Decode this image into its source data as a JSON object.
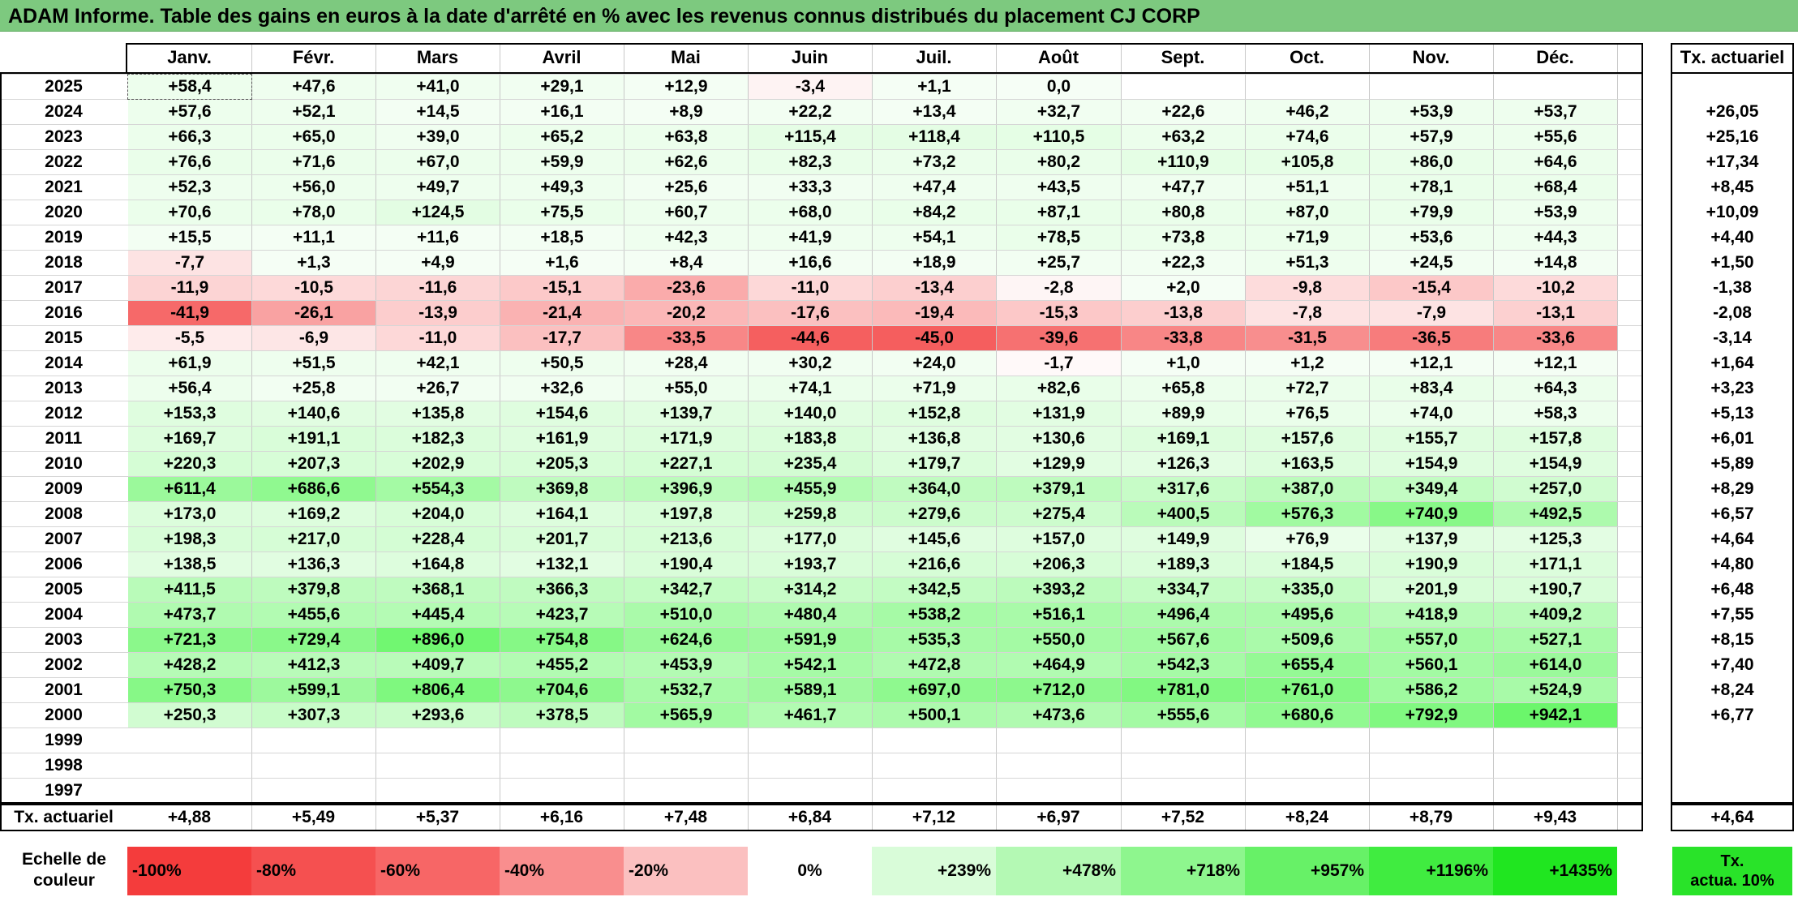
{
  "title": "ADAM Informe. Table des gains en euros à la date d'arrêté en % avec les revenus connus distribués du placement CJ CORP",
  "months": [
    "Janv.",
    "Févr.",
    "Mars",
    "Avril",
    "Mai",
    "Juin",
    "Juil.",
    "Août",
    "Sept.",
    "Oct.",
    "Nov.",
    "Déc."
  ],
  "tx_header": "Tx. actuariel",
  "rows": [
    {
      "year": "2025",
      "values": [
        "+58,4",
        "+47,6",
        "+41,0",
        "+29,1",
        "+12,9",
        "-3,4",
        "+1,1",
        "0,0",
        "",
        "",
        "",
        ""
      ],
      "tx": ""
    },
    {
      "year": "2024",
      "values": [
        "+57,6",
        "+52,1",
        "+14,5",
        "+16,1",
        "+8,9",
        "+22,2",
        "+13,4",
        "+32,7",
        "+22,6",
        "+46,2",
        "+53,9",
        "+53,7"
      ],
      "tx": "+26,05"
    },
    {
      "year": "2023",
      "values": [
        "+66,3",
        "+65,0",
        "+39,0",
        "+65,2",
        "+63,8",
        "+115,4",
        "+118,4",
        "+110,5",
        "+63,2",
        "+74,6",
        "+57,9",
        "+55,6"
      ],
      "tx": "+25,16"
    },
    {
      "year": "2022",
      "values": [
        "+76,6",
        "+71,6",
        "+67,0",
        "+59,9",
        "+62,6",
        "+82,3",
        "+73,2",
        "+80,2",
        "+110,9",
        "+105,8",
        "+86,0",
        "+64,6"
      ],
      "tx": "+17,34"
    },
    {
      "year": "2021",
      "values": [
        "+52,3",
        "+56,0",
        "+49,7",
        "+49,3",
        "+25,6",
        "+33,3",
        "+47,4",
        "+43,5",
        "+47,7",
        "+51,1",
        "+78,1",
        "+68,4"
      ],
      "tx": "+8,45"
    },
    {
      "year": "2020",
      "values": [
        "+70,6",
        "+78,0",
        "+124,5",
        "+75,5",
        "+60,7",
        "+68,0",
        "+84,2",
        "+87,1",
        "+80,8",
        "+87,0",
        "+79,9",
        "+53,9"
      ],
      "tx": "+10,09"
    },
    {
      "year": "2019",
      "values": [
        "+15,5",
        "+11,1",
        "+11,6",
        "+18,5",
        "+42,3",
        "+41,9",
        "+54,1",
        "+78,5",
        "+73,8",
        "+71,9",
        "+53,6",
        "+44,3"
      ],
      "tx": "+4,40"
    },
    {
      "year": "2018",
      "values": [
        "-7,7",
        "+1,3",
        "+4,9",
        "+1,6",
        "+8,4",
        "+16,6",
        "+18,9",
        "+25,7",
        "+22,3",
        "+51,3",
        "+24,5",
        "+14,8"
      ],
      "tx": "+1,50"
    },
    {
      "year": "2017",
      "values": [
        "-11,9",
        "-10,5",
        "-11,6",
        "-15,1",
        "-23,6",
        "-11,0",
        "-13,4",
        "-2,8",
        "+2,0",
        "-9,8",
        "-15,4",
        "-10,2"
      ],
      "tx": "-1,38"
    },
    {
      "year": "2016",
      "values": [
        "-41,9",
        "-26,1",
        "-13,9",
        "-21,4",
        "-20,2",
        "-17,6",
        "-19,4",
        "-15,3",
        "-13,8",
        "-7,8",
        "-7,9",
        "-13,1"
      ],
      "tx": "-2,08"
    },
    {
      "year": "2015",
      "values": [
        "-5,5",
        "-6,9",
        "-11,0",
        "-17,7",
        "-33,5",
        "-44,6",
        "-45,0",
        "-39,6",
        "-33,8",
        "-31,5",
        "-36,5",
        "-33,6"
      ],
      "tx": "-3,14"
    },
    {
      "year": "2014",
      "values": [
        "+61,9",
        "+51,5",
        "+42,1",
        "+50,5",
        "+28,4",
        "+30,2",
        "+24,0",
        "-1,7",
        "+1,0",
        "+1,2",
        "+12,1",
        "+12,1"
      ],
      "tx": "+1,64"
    },
    {
      "year": "2013",
      "values": [
        "+56,4",
        "+25,8",
        "+26,7",
        "+32,6",
        "+55,0",
        "+74,1",
        "+71,9",
        "+82,6",
        "+65,8",
        "+72,7",
        "+83,4",
        "+64,3"
      ],
      "tx": "+3,23"
    },
    {
      "year": "2012",
      "values": [
        "+153,3",
        "+140,6",
        "+135,8",
        "+154,6",
        "+139,7",
        "+140,0",
        "+152,8",
        "+131,9",
        "+89,9",
        "+76,5",
        "+74,0",
        "+58,3"
      ],
      "tx": "+5,13"
    },
    {
      "year": "2011",
      "values": [
        "+169,7",
        "+191,1",
        "+182,3",
        "+161,9",
        "+171,9",
        "+183,8",
        "+136,8",
        "+130,6",
        "+169,1",
        "+157,6",
        "+155,7",
        "+157,8"
      ],
      "tx": "+6,01"
    },
    {
      "year": "2010",
      "values": [
        "+220,3",
        "+207,3",
        "+202,9",
        "+205,3",
        "+227,1",
        "+235,4",
        "+179,7",
        "+129,9",
        "+126,3",
        "+163,5",
        "+154,9",
        "+154,9"
      ],
      "tx": "+5,89"
    },
    {
      "year": "2009",
      "values": [
        "+611,4",
        "+686,6",
        "+554,3",
        "+369,8",
        "+396,9",
        "+455,9",
        "+364,0",
        "+379,1",
        "+317,6",
        "+387,0",
        "+349,4",
        "+257,0"
      ],
      "tx": "+8,29"
    },
    {
      "year": "2008",
      "values": [
        "+173,0",
        "+169,2",
        "+204,0",
        "+164,1",
        "+197,8",
        "+259,8",
        "+279,6",
        "+275,4",
        "+400,5",
        "+576,3",
        "+740,9",
        "+492,5"
      ],
      "tx": "+6,57"
    },
    {
      "year": "2007",
      "values": [
        "+198,3",
        "+217,0",
        "+228,4",
        "+201,7",
        "+213,6",
        "+177,0",
        "+145,6",
        "+157,0",
        "+149,9",
        "+76,9",
        "+137,9",
        "+125,3"
      ],
      "tx": "+4,64"
    },
    {
      "year": "2006",
      "values": [
        "+138,5",
        "+136,3",
        "+164,8",
        "+132,1",
        "+190,4",
        "+193,7",
        "+216,6",
        "+206,3",
        "+189,3",
        "+184,5",
        "+190,9",
        "+171,1"
      ],
      "tx": "+4,80"
    },
    {
      "year": "2005",
      "values": [
        "+411,5",
        "+379,8",
        "+368,1",
        "+366,3",
        "+342,7",
        "+314,2",
        "+342,5",
        "+393,2",
        "+334,7",
        "+335,0",
        "+201,9",
        "+190,7"
      ],
      "tx": "+6,48"
    },
    {
      "year": "2004",
      "values": [
        "+473,7",
        "+455,6",
        "+445,4",
        "+423,7",
        "+510,0",
        "+480,4",
        "+538,2",
        "+516,1",
        "+496,4",
        "+495,6",
        "+418,9",
        "+409,2"
      ],
      "tx": "+7,55"
    },
    {
      "year": "2003",
      "values": [
        "+721,3",
        "+729,4",
        "+896,0",
        "+754,8",
        "+624,6",
        "+591,9",
        "+535,3",
        "+550,0",
        "+567,6",
        "+509,6",
        "+557,0",
        "+527,1"
      ],
      "tx": "+8,15"
    },
    {
      "year": "2002",
      "values": [
        "+428,2",
        "+412,3",
        "+409,7",
        "+455,2",
        "+453,9",
        "+542,1",
        "+472,8",
        "+464,9",
        "+542,3",
        "+655,4",
        "+560,1",
        "+614,0"
      ],
      "tx": "+7,40"
    },
    {
      "year": "2001",
      "values": [
        "+750,3",
        "+599,1",
        "+806,4",
        "+704,6",
        "+532,7",
        "+589,1",
        "+697,0",
        "+712,0",
        "+781,0",
        "+761,0",
        "+586,2",
        "+524,9"
      ],
      "tx": "+8,24"
    },
    {
      "year": "2000",
      "values": [
        "+250,3",
        "+307,3",
        "+293,6",
        "+378,5",
        "+565,9",
        "+461,7",
        "+500,1",
        "+473,6",
        "+555,6",
        "+680,6",
        "+792,9",
        "+942,1"
      ],
      "tx": "+6,77"
    },
    {
      "year": "1999",
      "values": [
        "",
        "",
        "",
        "",
        "",
        "",
        "",
        "",
        "",
        "",
        "",
        ""
      ],
      "tx": ""
    },
    {
      "year": "1998",
      "values": [
        "",
        "",
        "",
        "",
        "",
        "",
        "",
        "",
        "",
        "",
        "",
        ""
      ],
      "tx": ""
    },
    {
      "year": "1997",
      "values": [
        "",
        "",
        "",
        "",
        "",
        "",
        "",
        "",
        "",
        "",
        "",
        ""
      ],
      "tx": ""
    }
  ],
  "footer": {
    "label": "Tx. actuariel",
    "values": [
      "+4,88",
      "+5,49",
      "+5,37",
      "+6,16",
      "+7,48",
      "+6,84",
      "+7,12",
      "+6,97",
      "+7,52",
      "+8,24",
      "+8,79",
      "+9,43"
    ],
    "tx": "+4,64"
  },
  "legend": {
    "label_line1": "Echelle de",
    "label_line2": "couleur",
    "items": [
      {
        "text": "-100%",
        "color": "#f43c3c"
      },
      {
        "text": "-80%",
        "color": "#f55050"
      },
      {
        "text": "-60%",
        "color": "#f76666"
      },
      {
        "text": "-40%",
        "color": "#f98e8e"
      },
      {
        "text": "-20%",
        "color": "#fbc0c0"
      },
      {
        "text": "0%",
        "color": "#ffffff"
      },
      {
        "text": "+239%",
        "color": "#d9fcd9"
      },
      {
        "text": "+478%",
        "color": "#b4f9b4"
      },
      {
        "text": "+718%",
        "color": "#8ef68e"
      },
      {
        "text": "+957%",
        "color": "#67f167"
      },
      {
        "text": "+1196%",
        "color": "#40ec40"
      },
      {
        "text": "+1435%",
        "color": "#20e620"
      }
    ],
    "tx_line1": "Tx.",
    "tx_line2": "actua. 10%"
  },
  "colors": {
    "title_bg": "#7dc97f",
    "negative_max": "#f43c3c",
    "positive_max": "#20e620",
    "tx_legend": "#29e329"
  }
}
